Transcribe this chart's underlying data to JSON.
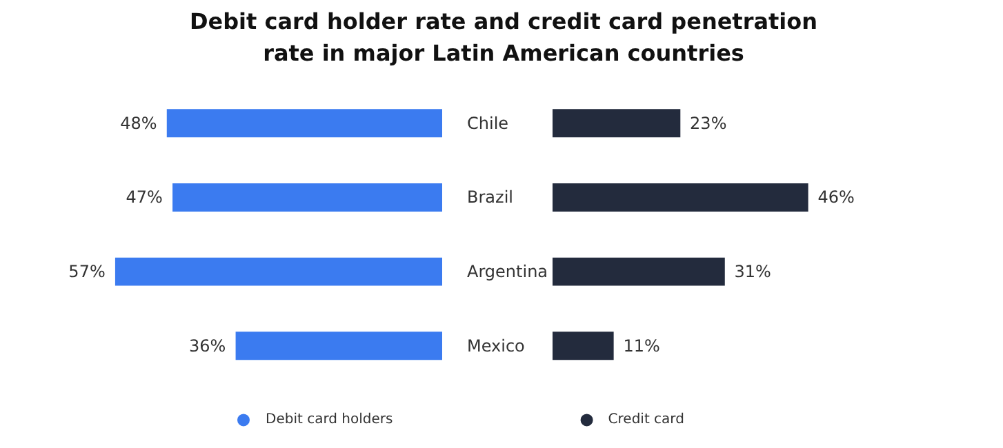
{
  "chart_data": [
    {
      "type": "bar",
      "orientation": "horizontal",
      "title": "Debit card holder rate and credit card penetration rate in major Latin American countries",
      "categories": [
        "Chile",
        "Brazil",
        "Argentina",
        "Mexico"
      ],
      "series": [
        {
          "name": "Debit card holders",
          "color": "#3b7bf0",
          "values": [
            48,
            47,
            57,
            36
          ],
          "value_labels": [
            "48%",
            "47%",
            "57%",
            "36%"
          ]
        }
      ],
      "legend": "bottom right"
    },
    {
      "type": "bar",
      "orientation": "horizontal",
      "categories": [
        null,
        null,
        null,
        null
      ],
      "series": [
        {
          "name": "Credit card",
          "color": "#232b3d",
          "values": [
            23,
            46,
            31,
            11
          ],
          "value_labels": [
            "23%",
            "46%",
            "31%",
            "11%"
          ]
        }
      ],
      "legend": "bottom left",
      "tick_labels": false
    }
  ]
}
